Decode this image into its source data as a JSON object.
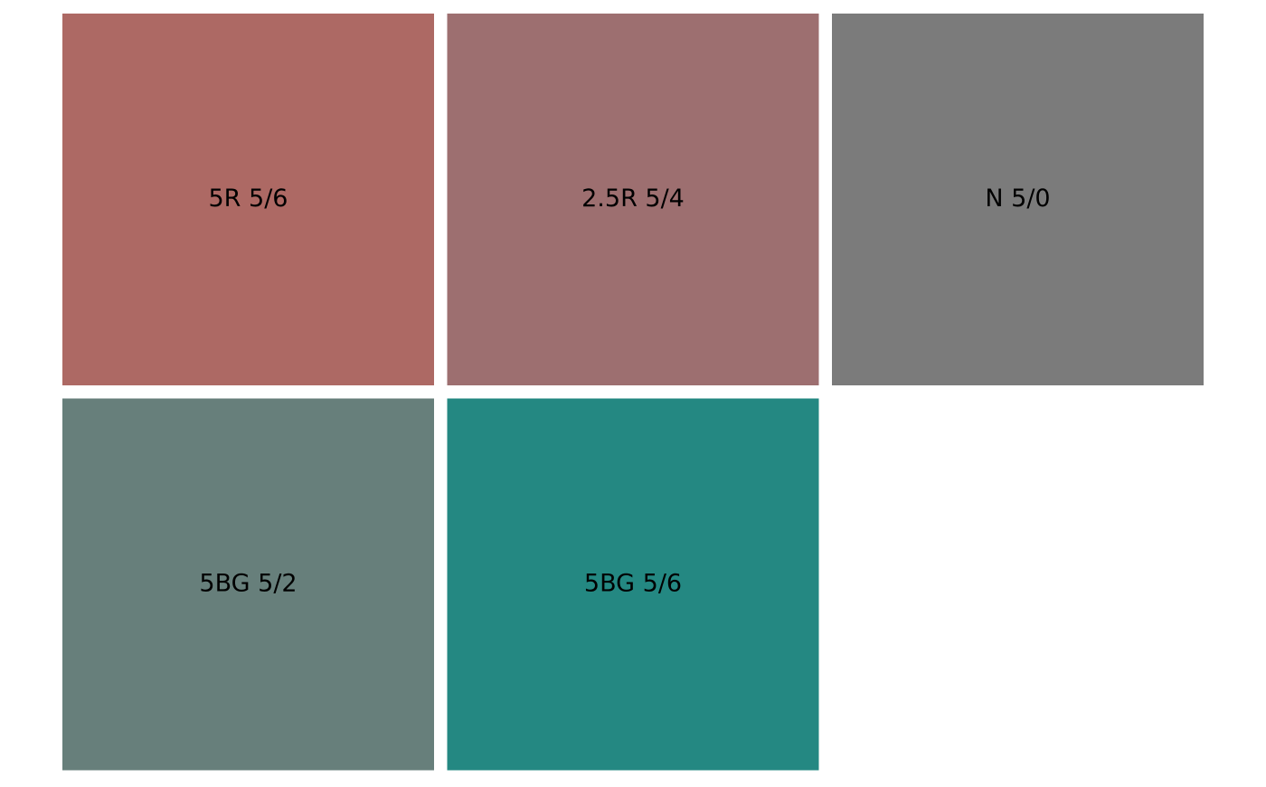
{
  "swatches": [
    {
      "label": "5R 5/6",
      "color": "#ad6964"
    },
    {
      "label": "2.5R 5/4",
      "color": "#9d6f70"
    },
    {
      "label": "N 5/0",
      "color": "#7b7b7b"
    },
    {
      "label": "5BG 5/2",
      "color": "#677f7b"
    },
    {
      "label": "5BG 5/6",
      "color": "#248882"
    }
  ]
}
